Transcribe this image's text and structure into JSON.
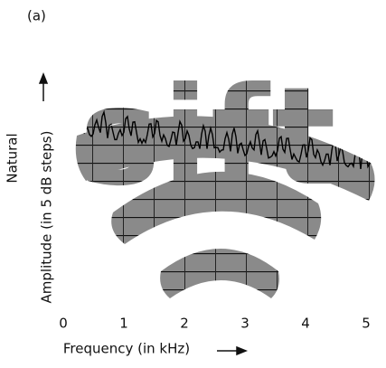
{
  "panel_label": "(a)",
  "row_label": "Natural",
  "y_axis_label": "Amplitude (in 5 dB steps)",
  "x_axis_label": "Frequency (in kHz)",
  "x_axis": {
    "xlim": [
      0,
      5
    ],
    "xticks": [
      0,
      1,
      2,
      3,
      4,
      5
    ]
  }
}
